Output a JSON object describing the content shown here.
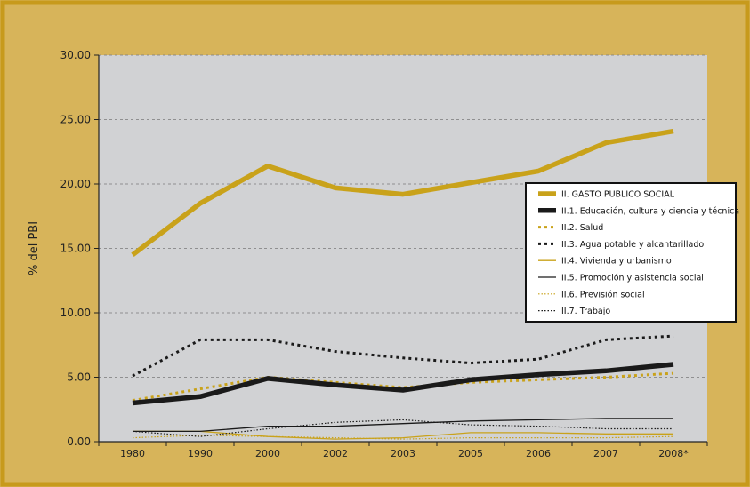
{
  "colors": {
    "background": "#d7b45a",
    "border": "#c79a1c",
    "plot_area": "#d1d2d4",
    "gold": "#c9a21a",
    "black": "#1a1a1a"
  },
  "chart_data": {
    "type": "line",
    "title": "",
    "xlabel": "",
    "ylabel": "% del PBI",
    "ylim": [
      0,
      30
    ],
    "yticks": [
      "0.00",
      "5.00",
      "10.00",
      "15.00",
      "20.00",
      "25.00",
      "30.00"
    ],
    "categories": [
      "1980",
      "1990",
      "2000",
      "2002",
      "2003",
      "2005",
      "2006",
      "2007",
      "2008*"
    ],
    "grid": "horizontal dashed",
    "legend_position": "right",
    "series": [
      {
        "name": "II. GASTO PUBLICO SOCIAL",
        "color": "#c9a21a",
        "style": "solid-thick",
        "values": [
          14.5,
          18.5,
          21.4,
          19.7,
          19.2,
          20.1,
          21.0,
          23.2,
          24.1
        ]
      },
      {
        "name": "II.1. Educación, cultura y ciencia y técnica",
        "color": "#1a1a1a",
        "style": "solid-thick",
        "values": [
          3.0,
          3.5,
          4.9,
          4.4,
          4.0,
          4.8,
          5.2,
          5.5,
          6.0
        ]
      },
      {
        "name": "II.2. Salud",
        "color": "#c9a21a",
        "style": "dotted-thick",
        "values": [
          3.2,
          4.1,
          5.0,
          4.6,
          4.2,
          4.6,
          4.8,
          5.0,
          5.3
        ]
      },
      {
        "name": "II.3. Agua potable y alcantarillado",
        "color": "#1a1a1a",
        "style": "dotted-thick",
        "values": [
          5.1,
          7.9,
          7.9,
          7.0,
          6.5,
          6.1,
          6.4,
          7.9,
          8.2
        ]
      },
      {
        "name": "II.4. Vivienda y urbanismo",
        "color": "#c9a21a",
        "style": "solid-thin",
        "values": [
          0.8,
          0.8,
          0.4,
          0.2,
          0.3,
          0.7,
          0.7,
          0.6,
          0.6
        ]
      },
      {
        "name": "II.5. Promoción y asistencia social",
        "color": "#1a1a1a",
        "style": "solid-thin",
        "values": [
          0.8,
          0.8,
          1.2,
          1.2,
          1.4,
          1.6,
          1.7,
          1.8,
          1.8
        ]
      },
      {
        "name": "II.6. Previsión social",
        "color": "#c9a21a",
        "style": "dotted-thin",
        "values": [
          0.3,
          0.5,
          0.4,
          0.3,
          0.2,
          0.3,
          0.3,
          0.3,
          0.4
        ]
      },
      {
        "name": "II.7. Trabajo",
        "color": "#1a1a1a",
        "style": "dotted-thin",
        "values": [
          0.8,
          0.4,
          1.0,
          1.5,
          1.7,
          1.3,
          1.2,
          1.0,
          1.0
        ]
      }
    ]
  }
}
